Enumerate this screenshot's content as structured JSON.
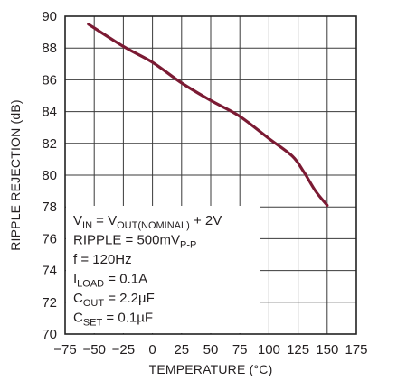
{
  "chart_data": {
    "type": "line",
    "title": "",
    "xlabel": "TEMPERATURE (°C)",
    "ylabel": "RIPPLE REJECTION (dB)",
    "xlim": [
      -75,
      175
    ],
    "ylim": [
      70,
      90
    ],
    "x_ticks": [
      -75,
      -50,
      -25,
      0,
      25,
      50,
      75,
      100,
      125,
      150,
      175
    ],
    "x_tick_labels": [
      "−75",
      "−50",
      "−25",
      "0",
      "25",
      "50",
      "75",
      "100",
      "125",
      "150",
      "175"
    ],
    "y_ticks": [
      70,
      72,
      74,
      76,
      78,
      80,
      82,
      84,
      86,
      88,
      90
    ],
    "y_tick_labels": [
      "70",
      "72",
      "74",
      "76",
      "78",
      "80",
      "82",
      "84",
      "86",
      "88",
      "90"
    ],
    "grid": true,
    "line_color": "#7b1a33",
    "series": [
      {
        "x": [
          -55,
          -25,
          0,
          25,
          50,
          75,
          100,
          120,
          130,
          140,
          150
        ],
        "y": [
          89.5,
          88.1,
          87.1,
          85.8,
          84.7,
          83.7,
          82.3,
          81.2,
          80.2,
          79.0,
          78.1
        ]
      }
    ],
    "annotations": [
      {
        "parts": [
          [
            "V",
            ""
          ],
          [
            "IN",
            "sub"
          ],
          [
            " = V",
            ""
          ],
          [
            "OUT(NOMINAL)",
            "sub"
          ],
          [
            " + 2V",
            ""
          ]
        ]
      },
      {
        "parts": [
          [
            "RIPPLE = 500mV",
            ""
          ],
          [
            "P-P",
            "sub"
          ]
        ]
      },
      {
        "parts": [
          [
            "f = 120Hz",
            ""
          ]
        ]
      },
      {
        "parts": [
          [
            "I",
            ""
          ],
          [
            "LOAD",
            "sub"
          ],
          [
            " = 0.1A",
            ""
          ]
        ]
      },
      {
        "parts": [
          [
            "C",
            ""
          ],
          [
            "OUT",
            "sub"
          ],
          [
            " = 2.2µF",
            ""
          ]
        ]
      },
      {
        "parts": [
          [
            "C",
            ""
          ],
          [
            "SET",
            "sub"
          ],
          [
            " = 0.1µF",
            ""
          ]
        ]
      }
    ]
  }
}
